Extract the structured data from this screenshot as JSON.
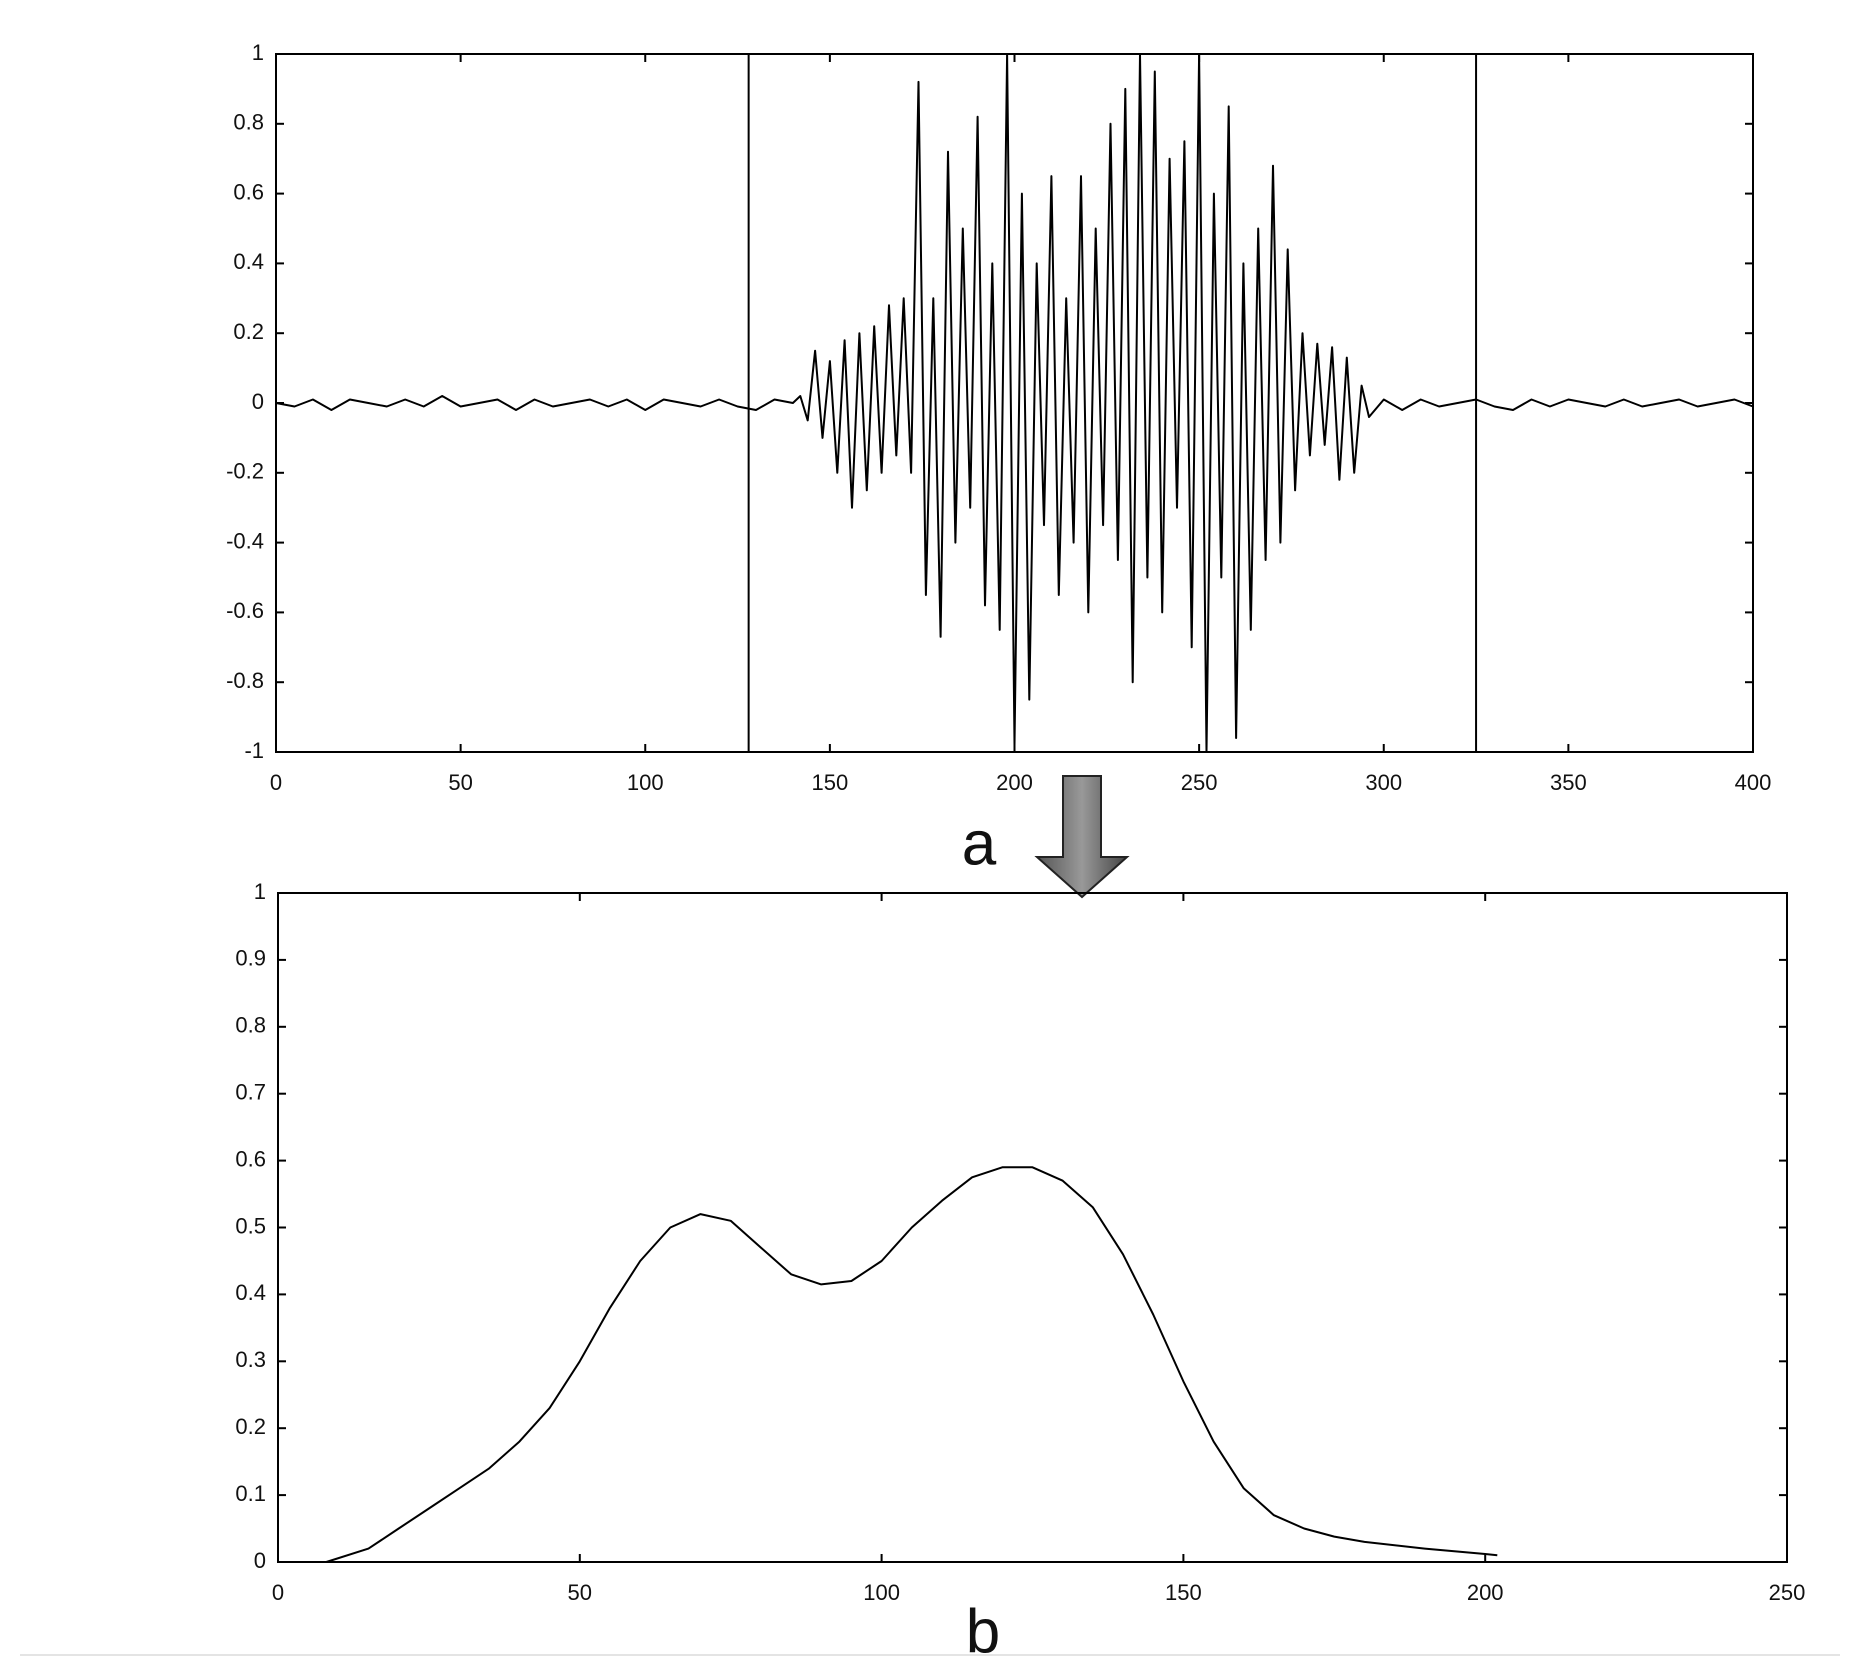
{
  "chart_data": [
    {
      "type": "line",
      "caption": "a",
      "color": "#000000",
      "x": [
        0,
        5,
        10,
        15,
        20,
        25,
        30,
        35,
        40,
        45,
        50,
        55,
        60,
        65,
        70,
        75,
        80,
        85,
        90,
        95,
        100,
        105,
        110,
        115,
        120,
        125,
        130,
        135,
        140,
        142,
        144,
        146,
        148,
        150,
        152,
        154,
        156,
        158,
        160,
        162,
        164,
        166,
        168,
        170,
        172,
        174,
        176,
        178,
        180,
        182,
        184,
        186,
        188,
        190,
        192,
        194,
        196,
        198,
        200,
        202,
        204,
        206,
        208,
        210,
        212,
        214,
        216,
        218,
        220,
        222,
        224,
        226,
        228,
        230,
        232,
        234,
        236,
        238,
        240,
        242,
        244,
        246,
        248,
        250,
        252,
        254,
        256,
        258,
        260,
        262,
        264,
        266,
        268,
        270,
        272,
        274,
        276,
        278,
        280,
        282,
        284,
        286,
        288,
        290,
        292,
        294,
        296,
        300,
        305,
        310,
        315,
        320,
        325,
        330,
        335,
        340,
        345,
        350,
        355,
        360,
        365,
        370,
        375,
        380,
        385,
        390,
        395,
        400
      ],
      "values": [
        0,
        -0.01,
        0.01,
        -0.02,
        0.01,
        0,
        -0.01,
        0.01,
        -0.01,
        0.02,
        -0.01,
        0,
        0.01,
        -0.02,
        0.01,
        -0.01,
        0,
        0.01,
        -0.01,
        0.01,
        -0.02,
        0.01,
        0,
        -0.01,
        0.01,
        -0.01,
        -0.02,
        0.01,
        0,
        0.02,
        -0.05,
        0.15,
        -0.1,
        0.12,
        -0.2,
        0.18,
        -0.3,
        0.2,
        -0.25,
        0.22,
        -0.2,
        0.28,
        -0.15,
        0.3,
        -0.2,
        0.92,
        -0.55,
        0.3,
        -0.67,
        0.72,
        -0.4,
        0.5,
        -0.3,
        0.82,
        -0.58,
        0.4,
        -0.65,
        1,
        -0.98,
        0.6,
        -0.85,
        0.4,
        -0.35,
        0.65,
        -0.55,
        0.3,
        -0.4,
        0.65,
        -0.6,
        0.5,
        -0.35,
        0.8,
        -0.45,
        0.9,
        -0.8,
        1,
        -0.5,
        0.95,
        -0.6,
        0.7,
        -0.3,
        0.75,
        -0.7,
        1,
        -1,
        0.6,
        -0.5,
        0.85,
        -0.96,
        0.4,
        -0.65,
        0.5,
        -0.45,
        0.68,
        -0.4,
        0.44,
        -0.25,
        0.2,
        -0.15,
        0.17,
        -0.12,
        0.16,
        -0.22,
        0.13,
        -0.2,
        0.05,
        -0.04,
        0.01,
        -0.02,
        0.01,
        -0.01,
        0,
        0.01,
        -0.01,
        -0.02,
        0.01,
        -0.01,
        0.01,
        0,
        -0.01,
        0.01,
        -0.01,
        0,
        0.01,
        -0.01,
        0,
        0.01,
        -0.01
      ],
      "vlines": [
        128,
        325
      ],
      "xlim": [
        0,
        400
      ],
      "xticks": [
        0,
        50,
        100,
        150,
        200,
        250,
        300,
        350,
        400
      ],
      "ylim": [
        -1,
        1
      ],
      "yticks": [
        -1,
        -0.8,
        -0.6,
        -0.4,
        -0.2,
        0,
        0.2,
        0.4,
        0.6,
        0.8,
        1
      ]
    },
    {
      "type": "line",
      "caption": "b",
      "color": "#000000",
      "x": [
        8,
        15,
        20,
        25,
        30,
        35,
        40,
        45,
        50,
        55,
        60,
        65,
        70,
        75,
        80,
        85,
        90,
        95,
        100,
        105,
        110,
        115,
        120,
        125,
        130,
        135,
        140,
        145,
        150,
        155,
        160,
        165,
        170,
        175,
        180,
        190,
        200,
        202
      ],
      "values": [
        0,
        0.02,
        0.05,
        0.08,
        0.11,
        0.14,
        0.18,
        0.23,
        0.3,
        0.38,
        0.45,
        0.5,
        0.52,
        0.51,
        0.47,
        0.43,
        0.415,
        0.42,
        0.45,
        0.5,
        0.54,
        0.575,
        0.59,
        0.59,
        0.57,
        0.53,
        0.46,
        0.37,
        0.27,
        0.18,
        0.11,
        0.07,
        0.05,
        0.038,
        0.03,
        0.02,
        0.012,
        0.01
      ],
      "xlim": [
        0,
        250
      ],
      "xticks": [
        0,
        50,
        100,
        150,
        200,
        250
      ],
      "ylim": [
        0,
        1
      ],
      "yticks": [
        0,
        0.1,
        0.2,
        0.3,
        0.4,
        0.5,
        0.6,
        0.7,
        0.8,
        0.9,
        1
      ]
    }
  ]
}
